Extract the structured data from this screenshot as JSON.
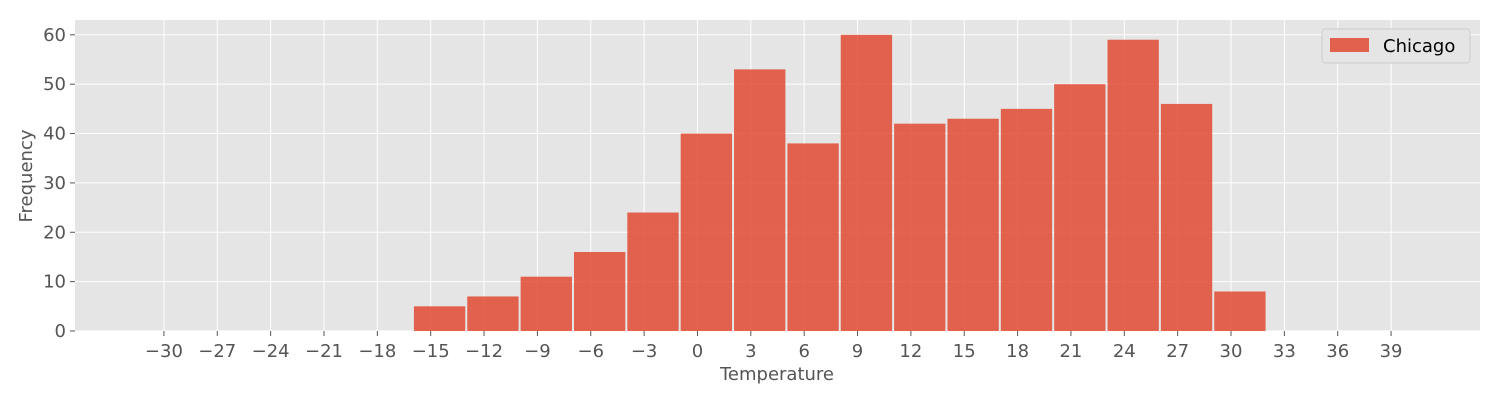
{
  "chart_data": {
    "type": "bar",
    "xlabel": "Temperature",
    "ylabel": "Frequency",
    "legend": {
      "position": "top-right",
      "entries": [
        "Chicago"
      ]
    },
    "grid": true,
    "xlim": [
      -35,
      44
    ],
    "ylim": [
      0,
      63
    ],
    "x_ticks": [
      -30,
      -27,
      -24,
      -21,
      -18,
      -15,
      -12,
      -9,
      -6,
      -3,
      0,
      3,
      6,
      9,
      12,
      15,
      18,
      21,
      24,
      27,
      30,
      33,
      36,
      39
    ],
    "x_tick_labels": [
      "−30",
      "−27",
      "−24",
      "−21",
      "−18",
      "−15",
      "−12",
      "−9",
      "−6",
      "−3",
      "0",
      "3",
      "6",
      "9",
      "12",
      "15",
      "18",
      "21",
      "24",
      "27",
      "30",
      "33",
      "36",
      "39"
    ],
    "y_ticks": [
      0,
      10,
      20,
      30,
      40,
      50,
      60
    ],
    "y_tick_labels": [
      "0",
      "10",
      "20",
      "30",
      "40",
      "50",
      "60"
    ],
    "series": [
      {
        "name": "Chicago",
        "color": "#E24A33",
        "bins": [
          {
            "x0": -16,
            "x1": -13,
            "count": 5
          },
          {
            "x0": -13,
            "x1": -10,
            "count": 7
          },
          {
            "x0": -10,
            "x1": -7,
            "count": 11
          },
          {
            "x0": -7,
            "x1": -4,
            "count": 16
          },
          {
            "x0": -4,
            "x1": -1,
            "count": 24
          },
          {
            "x0": -1,
            "x1": 2,
            "count": 40
          },
          {
            "x0": 2,
            "x1": 5,
            "count": 53
          },
          {
            "x0": 5,
            "x1": 8,
            "count": 38
          },
          {
            "x0": 8,
            "x1": 11,
            "count": 60
          },
          {
            "x0": 11,
            "x1": 14,
            "count": 42
          },
          {
            "x0": 14,
            "x1": 17,
            "count": 43
          },
          {
            "x0": 17,
            "x1": 20,
            "count": 45
          },
          {
            "x0": 20,
            "x1": 23,
            "count": 50
          },
          {
            "x0": 23,
            "x1": 26,
            "count": 59
          },
          {
            "x0": 26,
            "x1": 29,
            "count": 46
          },
          {
            "x0": 29,
            "x1": 32,
            "count": 8
          }
        ]
      }
    ]
  }
}
